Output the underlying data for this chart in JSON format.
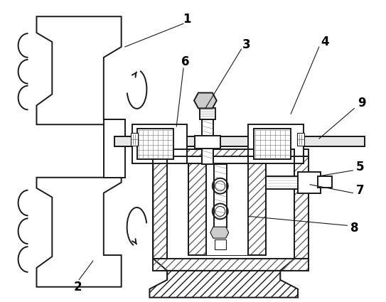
{
  "bg_color": "#ffffff",
  "line_color": "#1a1a1a",
  "label_color": "#000000",
  "lw_main": 1.4,
  "lw_thin": 0.7,
  "label_fontsize": 12
}
